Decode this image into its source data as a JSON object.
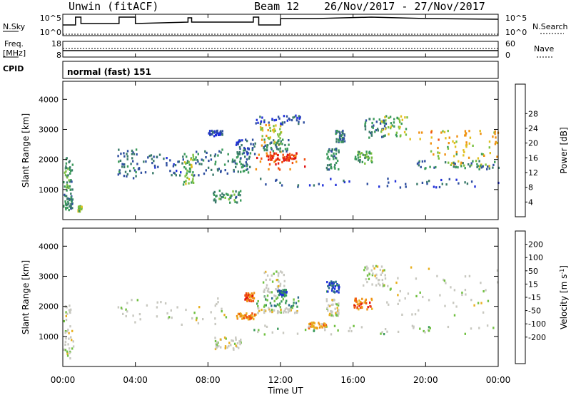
{
  "header": {
    "radar": "Unwin (fitACF)",
    "beam": "Beam 12",
    "date_range": "26/Nov/2017 - 27/Nov/2017"
  },
  "strips": {
    "nsky_label": "N.Sky",
    "nsky_ticks": [
      "10^5",
      "10^0"
    ],
    "nsearch_label": "N.Search",
    "nsearch_ticks": [
      "10^5",
      "10^0"
    ],
    "freq_label_1": "Freq.",
    "freq_label_2": "[MHz]",
    "freq_ticks": [
      "18",
      "8"
    ],
    "nave_label": "Nave",
    "nave_ticks": [
      "60",
      "0"
    ],
    "cpid_label": "CPID",
    "cpid_value": "normal (fast) 151"
  },
  "colors": {
    "power": [
      "#1f2fd9",
      "#2f4fa0",
      "#3a7a6a",
      "#3a9a5a",
      "#7ac040",
      "#e0c020",
      "#f09010",
      "#f05010",
      "#e01010"
    ],
    "velocity": [
      "#e01010",
      "#f05010",
      "#f09010",
      "#e8b020",
      "#c8c8c0",
      "#c8c8c0",
      "#70c040",
      "#3a9a5a",
      "#2a6a8a",
      "#1f2fd9"
    ]
  },
  "chart_data": [
    {
      "type": "heatmap",
      "title": "",
      "xlabel": "",
      "ylabel": "Slant Range [km]",
      "ylim": [
        0,
        4600
      ],
      "yticks": [
        "1000",
        "2000",
        "3000",
        "4000"
      ],
      "colorbar_label": "Power [dB]",
      "colorbar_ticks": [
        "4",
        "8",
        "12",
        "16",
        "20",
        "24",
        "28"
      ],
      "colorbar_range": [
        0,
        32
      ],
      "blobs": [
        {
          "t0": 0.0,
          "t1": 0.5,
          "r0": 300,
          "r1": 900,
          "level": 0.3
        },
        {
          "t0": 0.0,
          "t1": 0.5,
          "r0": 1000,
          "r1": 2100,
          "level": 0.35
        },
        {
          "t0": 0.8,
          "t1": 1.0,
          "r0": 300,
          "r1": 500,
          "level": 0.5
        },
        {
          "t0": 3.0,
          "t1": 4.1,
          "r0": 1400,
          "r1": 2400,
          "level": 0.25
        },
        {
          "t0": 4.1,
          "t1": 6.6,
          "r0": 1500,
          "r1": 2200,
          "level": 0.2
        },
        {
          "t0": 6.6,
          "t1": 7.2,
          "r0": 1200,
          "r1": 2300,
          "level": 0.45
        },
        {
          "t0": 7.2,
          "t1": 9.2,
          "r0": 1500,
          "r1": 2400,
          "level": 0.25
        },
        {
          "t0": 8.2,
          "t1": 9.8,
          "r0": 600,
          "r1": 1000,
          "level": 0.35
        },
        {
          "t0": 8.0,
          "t1": 8.8,
          "r0": 2800,
          "r1": 3000,
          "level": 0.15
        },
        {
          "t0": 9.3,
          "t1": 10.3,
          "r0": 1600,
          "r1": 2300,
          "level": 0.3
        },
        {
          "t0": 9.5,
          "t1": 10.6,
          "r0": 2200,
          "r1": 2700,
          "level": 0.2
        },
        {
          "t0": 10.6,
          "t1": 13.3,
          "r0": 1700,
          "r1": 2300,
          "level": 0.82
        },
        {
          "t0": 11.2,
          "t1": 12.8,
          "r0": 2000,
          "r1": 2200,
          "level": 0.92
        },
        {
          "t0": 10.8,
          "t1": 12.0,
          "r0": 2500,
          "r1": 3200,
          "level": 0.6
        },
        {
          "t0": 11.0,
          "t1": 12.5,
          "r0": 2300,
          "r1": 2700,
          "level": 0.3
        },
        {
          "t0": 10.6,
          "t1": 13.3,
          "r0": 3200,
          "r1": 3500,
          "level": 0.15
        },
        {
          "t0": 10.5,
          "t1": 24.0,
          "r0": 1100,
          "r1": 1400,
          "level": 0.18
        },
        {
          "t0": 14.5,
          "t1": 15.2,
          "r0": 1700,
          "r1": 2400,
          "level": 0.3
        },
        {
          "t0": 15.0,
          "t1": 15.5,
          "r0": 2600,
          "r1": 3000,
          "level": 0.25
        },
        {
          "t0": 16.0,
          "t1": 17.0,
          "r0": 1900,
          "r1": 2300,
          "level": 0.4
        },
        {
          "t0": 16.5,
          "t1": 17.8,
          "r0": 2700,
          "r1": 3400,
          "level": 0.3
        },
        {
          "t0": 17.5,
          "t1": 19.0,
          "r0": 2800,
          "r1": 3500,
          "level": 0.5
        },
        {
          "t0": 19.0,
          "t1": 24.0,
          "r0": 2500,
          "r1": 3000,
          "level": 0.68
        },
        {
          "t0": 20.0,
          "t1": 24.0,
          "r0": 1800,
          "r1": 2500,
          "level": 0.58
        },
        {
          "t0": 19.5,
          "t1": 24.0,
          "r0": 1700,
          "r1": 2000,
          "level": 0.3
        }
      ]
    },
    {
      "type": "heatmap",
      "title": "",
      "xlabel": "Time UT",
      "ylabel": "Slant Range [km]",
      "ylim": [
        0,
        4600
      ],
      "yticks": [
        "1000",
        "2000",
        "3000",
        "4000"
      ],
      "xticks": [
        "00:00",
        "04:00",
        "08:00",
        "12:00",
        "16:00",
        "20:00",
        "00:00"
      ],
      "xlim": [
        0,
        24
      ],
      "colorbar_label_main": "Velocity",
      "colorbar_label_unit": "[m s",
      "colorbar_label_exp": "-1",
      "colorbar_label_close": "]",
      "colorbar_ticks": [
        "200",
        "100",
        "50",
        "15",
        "-15",
        "-50",
        "-100",
        "-200"
      ],
      "colorbar_range": [
        -250,
        250
      ],
      "blobs": [
        {
          "t0": 0.0,
          "t1": 0.6,
          "r0": 300,
          "r1": 2100,
          "level": 0.5
        },
        {
          "t0": 3.0,
          "t1": 9.2,
          "r0": 1400,
          "r1": 2300,
          "level": 0.5
        },
        {
          "t0": 8.2,
          "t1": 9.8,
          "r0": 600,
          "r1": 1000,
          "level": 0.5
        },
        {
          "t0": 9.5,
          "t1": 10.6,
          "r0": 1600,
          "r1": 1800,
          "level": 0.25
        },
        {
          "t0": 10.6,
          "t1": 13.0,
          "r0": 2000,
          "r1": 2400,
          "level": 0.7
        },
        {
          "t0": 10.6,
          "t1": 13.0,
          "r0": 1800,
          "r1": 2000,
          "level": 0.5
        },
        {
          "t0": 11.0,
          "t1": 12.2,
          "r0": 2500,
          "r1": 3200,
          "level": 0.5
        },
        {
          "t0": 11.8,
          "t1": 12.3,
          "r0": 2400,
          "r1": 2600,
          "level": 0.85
        },
        {
          "t0": 10.0,
          "t1": 10.5,
          "r0": 2200,
          "r1": 2500,
          "level": 0.15
        },
        {
          "t0": 10.5,
          "t1": 24.0,
          "r0": 1100,
          "r1": 1400,
          "level": 0.62
        },
        {
          "t0": 13.5,
          "t1": 14.5,
          "r0": 1300,
          "r1": 1500,
          "level": 0.3
        },
        {
          "t0": 14.5,
          "t1": 15.2,
          "r0": 2500,
          "r1": 2900,
          "level": 0.88
        },
        {
          "t0": 14.5,
          "t1": 15.2,
          "r0": 1700,
          "r1": 2300,
          "level": 0.5
        },
        {
          "t0": 16.0,
          "t1": 17.0,
          "r0": 1900,
          "r1": 2300,
          "level": 0.2
        },
        {
          "t0": 16.5,
          "t1": 17.8,
          "r0": 2700,
          "r1": 3400,
          "level": 0.5
        },
        {
          "t0": 17.8,
          "t1": 24.0,
          "r0": 1700,
          "r1": 3400,
          "level": 0.5
        }
      ]
    }
  ]
}
